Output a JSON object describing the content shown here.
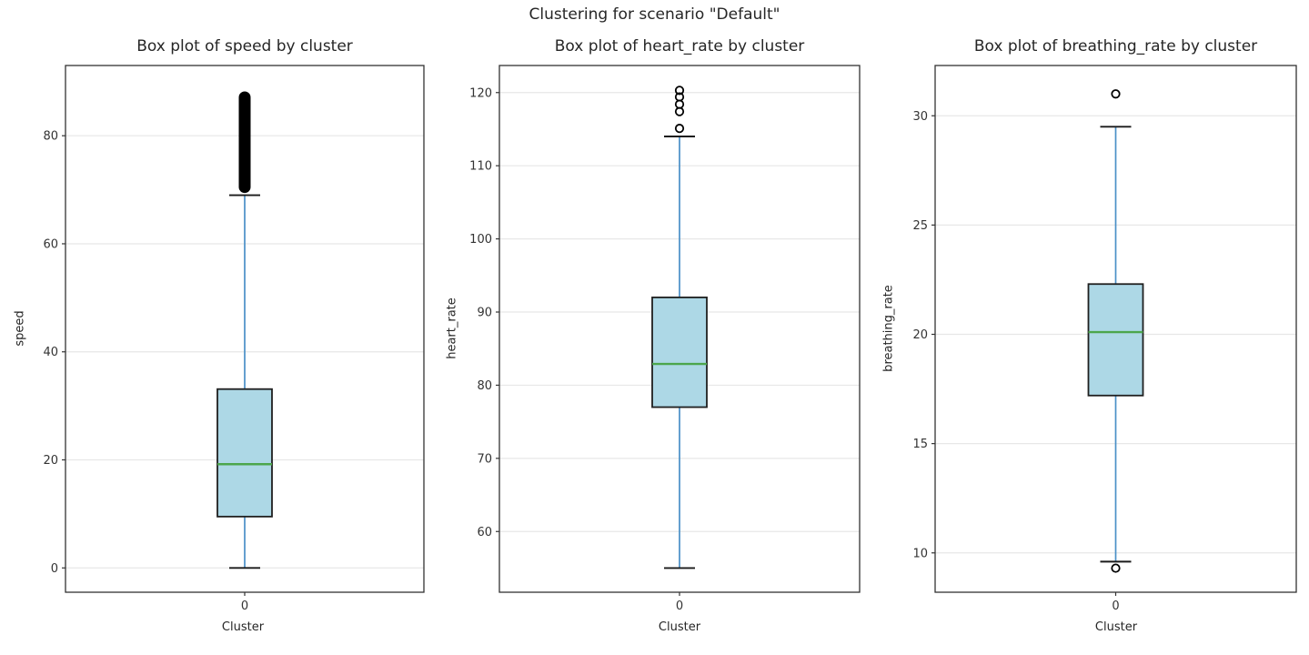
{
  "figure": {
    "suptitle": "Clustering for scenario \"Default\"",
    "background": "#ffffff"
  },
  "colors": {
    "box_fill": "#add8e6",
    "box_edge": "#1f1f1f",
    "median": "#4ca64c",
    "whisker": "#4a90c7",
    "cap": "#1a1a1a",
    "flier": "#000000",
    "grid": "#e7e7e7",
    "spine": "#333333",
    "tick_text": "#333333"
  },
  "chart_data": [
    {
      "type": "box",
      "title": "Box plot of speed by cluster",
      "xlabel": "Cluster",
      "ylabel": "speed",
      "categories": [
        "0"
      ],
      "yticks": [
        0,
        20,
        40,
        60,
        80
      ],
      "ylim": [
        -4.5,
        93.0
      ],
      "grid": true,
      "series": [
        {
          "category": "0",
          "whisker_low": 0,
          "q1": 9.5,
          "median": 19.2,
          "q3": 33.1,
          "whisker_high": 69,
          "outliers": [],
          "outlier_dense_range": [
            69.4,
            88.2
          ]
        }
      ]
    },
    {
      "type": "box",
      "title": "Box plot of heart_rate by cluster",
      "xlabel": "Cluster",
      "ylabel": "heart_rate",
      "categories": [
        "0"
      ],
      "yticks": [
        60,
        70,
        80,
        90,
        100,
        110,
        120
      ],
      "ylim": [
        51.7,
        123.7
      ],
      "grid": true,
      "series": [
        {
          "category": "0",
          "whisker_low": 55,
          "q1": 77,
          "median": 82.9,
          "q3": 92,
          "whisker_high": 114,
          "outliers": [
            115.1,
            117.4,
            118.4,
            119.4,
            120.3
          ],
          "outlier_dense_range": null
        }
      ]
    },
    {
      "type": "box",
      "title": "Box plot of breathing_rate by cluster",
      "xlabel": "Cluster",
      "ylabel": "breathing_rate",
      "categories": [
        "0"
      ],
      "yticks": [
        10,
        15,
        20,
        25,
        30
      ],
      "ylim": [
        8.2,
        32.3
      ],
      "grid": true,
      "series": [
        {
          "category": "0",
          "whisker_low": 9.6,
          "q1": 17.2,
          "median": 20.1,
          "q3": 22.3,
          "whisker_high": 29.5,
          "outliers": [
            31.0,
            9.3
          ],
          "outlier_dense_range": null
        }
      ]
    }
  ]
}
